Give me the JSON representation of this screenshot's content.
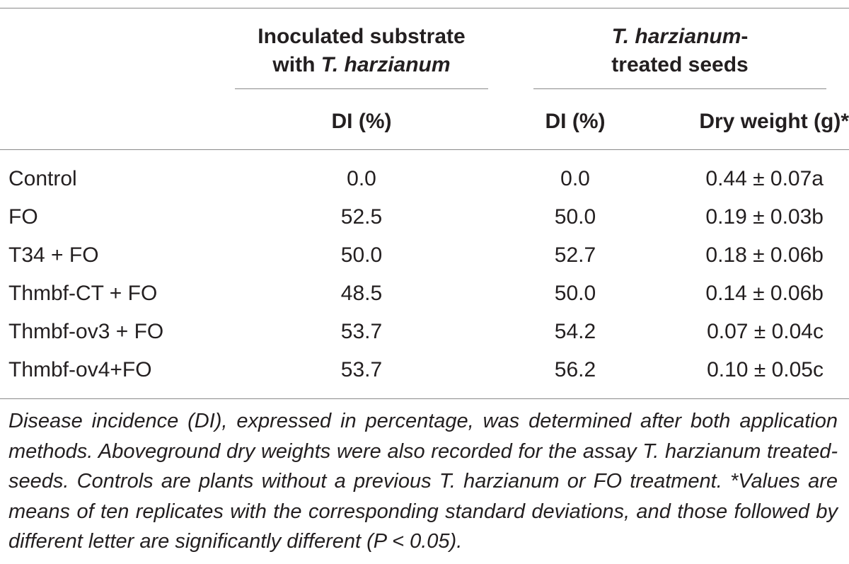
{
  "table": {
    "group_headers": {
      "substrate_line1": "Inoculated substrate",
      "substrate_line2_prefix": "with ",
      "substrate_line2_italic": "T. harzianum",
      "seeds_line1_italic": "T. harzianum",
      "seeds_line1_suffix": "-",
      "seeds_line2": "treated seeds"
    },
    "column_headers": {
      "substrate_di": "DI (%)",
      "seeds_di": "DI (%)",
      "dry_weight": "Dry weight (g)*"
    },
    "rows": [
      {
        "treatment": "Control",
        "substrate_di": "0.0",
        "seeds_di": "0.0",
        "dry_weight": "0.44 ± 0.07a"
      },
      {
        "treatment": "FO",
        "substrate_di": "52.5",
        "seeds_di": "50.0",
        "dry_weight": "0.19 ± 0.03b"
      },
      {
        "treatment": "T34 + FO",
        "substrate_di": "50.0",
        "seeds_di": "52.7",
        "dry_weight": "0.18 ± 0.06b"
      },
      {
        "treatment": "Thmbf-CT + FO",
        "substrate_di": "48.5",
        "seeds_di": "50.0",
        "dry_weight": "0.14 ± 0.06b"
      },
      {
        "treatment": "Thmbf-ov3 + FO",
        "substrate_di": "53.7",
        "seeds_di": "54.2",
        "dry_weight": "0.07 ± 0.04c"
      },
      {
        "treatment": "Thmbf-ov4+FO",
        "substrate_di": "53.7",
        "seeds_di": "56.2",
        "dry_weight": "0.10 ± 0.05c"
      }
    ]
  },
  "footnote": "Disease incidence (DI), expressed in percentage, was determined after both application methods. Aboveground dry weights were also recorded for the assay T. harzianum treated-seeds. Controls are plants without a previous T. harzianum or FO treatment. *Values are means of ten replicates with the corresponding standard deviations, and those followed by different letter are significantly different (P < 0.05)."
}
